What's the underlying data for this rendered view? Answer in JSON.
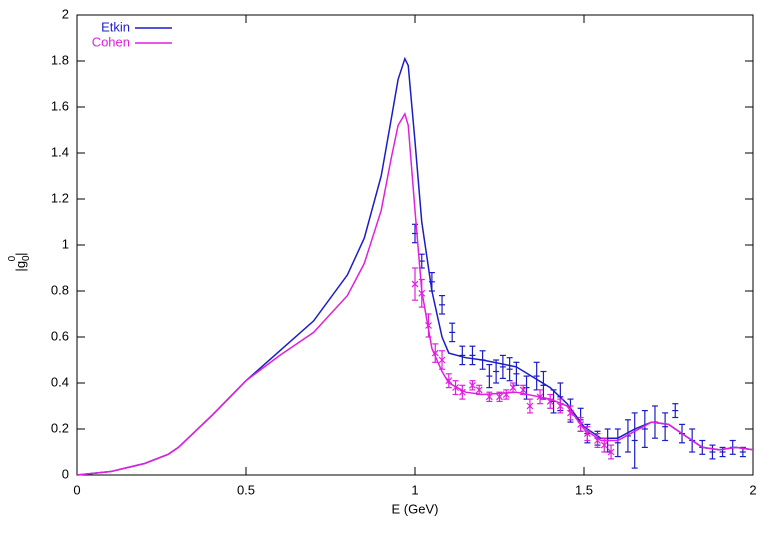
{
  "chart_data": {
    "type": "line",
    "xlabel": "E (GeV)",
    "ylabel": {
      "base": "|g",
      "sub": "0",
      "sup": "0",
      "end": "|"
    },
    "xlim": [
      0,
      2
    ],
    "xticks": [
      0,
      0.5,
      1,
      1.5,
      2
    ],
    "ylim": [
      0,
      2
    ],
    "yticks": [
      0,
      0.2,
      0.4,
      0.6,
      0.8,
      1,
      1.2,
      1.4,
      1.6,
      1.8,
      2
    ],
    "legend": "top-left",
    "x": [
      0,
      0.1,
      0.2,
      0.27,
      0.3,
      0.4,
      0.5,
      0.6,
      0.7,
      0.8,
      0.85,
      0.9,
      0.93,
      0.95,
      0.97,
      0.98,
      1.0,
      1.02,
      1.05,
      1.08,
      1.1,
      1.15,
      1.2,
      1.3,
      1.4,
      1.45,
      1.5,
      1.55,
      1.6,
      1.65,
      1.7,
      1.75,
      1.8,
      1.85,
      1.9,
      1.95,
      2.0
    ],
    "series": [
      {
        "name": "Etkin",
        "color": "#1c1cc8",
        "marker": "plus",
        "values": [
          0,
          0.015,
          0.05,
          0.09,
          0.12,
          0.26,
          0.41,
          0.54,
          0.67,
          0.87,
          1.03,
          1.3,
          1.55,
          1.72,
          1.81,
          1.78,
          1.45,
          1.1,
          0.8,
          0.6,
          0.53,
          0.51,
          0.5,
          0.47,
          0.38,
          0.31,
          0.21,
          0.16,
          0.16,
          0.2,
          0.23,
          0.22,
          0.17,
          0.12,
          0.11,
          0.12,
          0.11
        ],
        "points": {
          "x": [
            1.0,
            1.02,
            1.05,
            1.08,
            1.11,
            1.14,
            1.17,
            1.2,
            1.22,
            1.24,
            1.26,
            1.28,
            1.3,
            1.33,
            1.36,
            1.38,
            1.41,
            1.43,
            1.46,
            1.49,
            1.51,
            1.54,
            1.57,
            1.6,
            1.63,
            1.65,
            1.68,
            1.71,
            1.74,
            1.77,
            1.79,
            1.82,
            1.85,
            1.88,
            1.91,
            1.94,
            1.97
          ],
          "values": [
            1.05,
            0.93,
            0.84,
            0.74,
            0.62,
            0.52,
            0.52,
            0.5,
            0.43,
            0.45,
            0.47,
            0.46,
            0.44,
            0.38,
            0.43,
            0.39,
            0.32,
            0.34,
            0.28,
            0.24,
            0.18,
            0.16,
            0.15,
            0.14,
            0.17,
            0.15,
            0.2,
            0.23,
            0.21,
            0.28,
            0.18,
            0.15,
            0.12,
            0.1,
            0.1,
            0.12,
            0.1
          ],
          "errors": [
            0.04,
            0.03,
            0.04,
            0.04,
            0.04,
            0.04,
            0.04,
            0.04,
            0.05,
            0.05,
            0.05,
            0.05,
            0.05,
            0.05,
            0.06,
            0.06,
            0.05,
            0.06,
            0.05,
            0.05,
            0.04,
            0.03,
            0.05,
            0.06,
            0.07,
            0.12,
            0.08,
            0.07,
            0.06,
            0.03,
            0.04,
            0.05,
            0.03,
            0.03,
            0.02,
            0.03,
            0.02
          ]
        }
      },
      {
        "name": "Cohen",
        "color": "#e020e0",
        "marker": "cross",
        "values": [
          0,
          0.015,
          0.05,
          0.09,
          0.12,
          0.26,
          0.41,
          0.52,
          0.62,
          0.78,
          0.92,
          1.15,
          1.38,
          1.52,
          1.57,
          1.52,
          1.15,
          0.8,
          0.55,
          0.45,
          0.4,
          0.36,
          0.35,
          0.36,
          0.33,
          0.3,
          0.2,
          0.15,
          0.15,
          0.19,
          0.23,
          0.22,
          0.17,
          0.12,
          0.11,
          0.12,
          0.11
        ],
        "points": {
          "x": [
            1.0,
            1.02,
            1.04,
            1.06,
            1.08,
            1.1,
            1.12,
            1.14,
            1.17,
            1.19,
            1.22,
            1.25,
            1.27,
            1.29,
            1.32,
            1.34,
            1.37,
            1.4,
            1.43,
            1.46,
            1.49,
            1.51,
            1.54,
            1.56,
            1.58
          ],
          "values": [
            0.83,
            0.79,
            0.65,
            0.53,
            0.5,
            0.41,
            0.38,
            0.36,
            0.39,
            0.37,
            0.34,
            0.34,
            0.35,
            0.38,
            0.37,
            0.3,
            0.34,
            0.32,
            0.3,
            0.27,
            0.22,
            0.18,
            0.15,
            0.13,
            0.1
          ],
          "errors": [
            0.07,
            0.06,
            0.05,
            0.04,
            0.04,
            0.03,
            0.03,
            0.03,
            0.02,
            0.02,
            0.02,
            0.02,
            0.02,
            0.02,
            0.02,
            0.03,
            0.03,
            0.03,
            0.03,
            0.03,
            0.03,
            0.03,
            0.03,
            0.03,
            0.03
          ]
        }
      }
    ]
  }
}
